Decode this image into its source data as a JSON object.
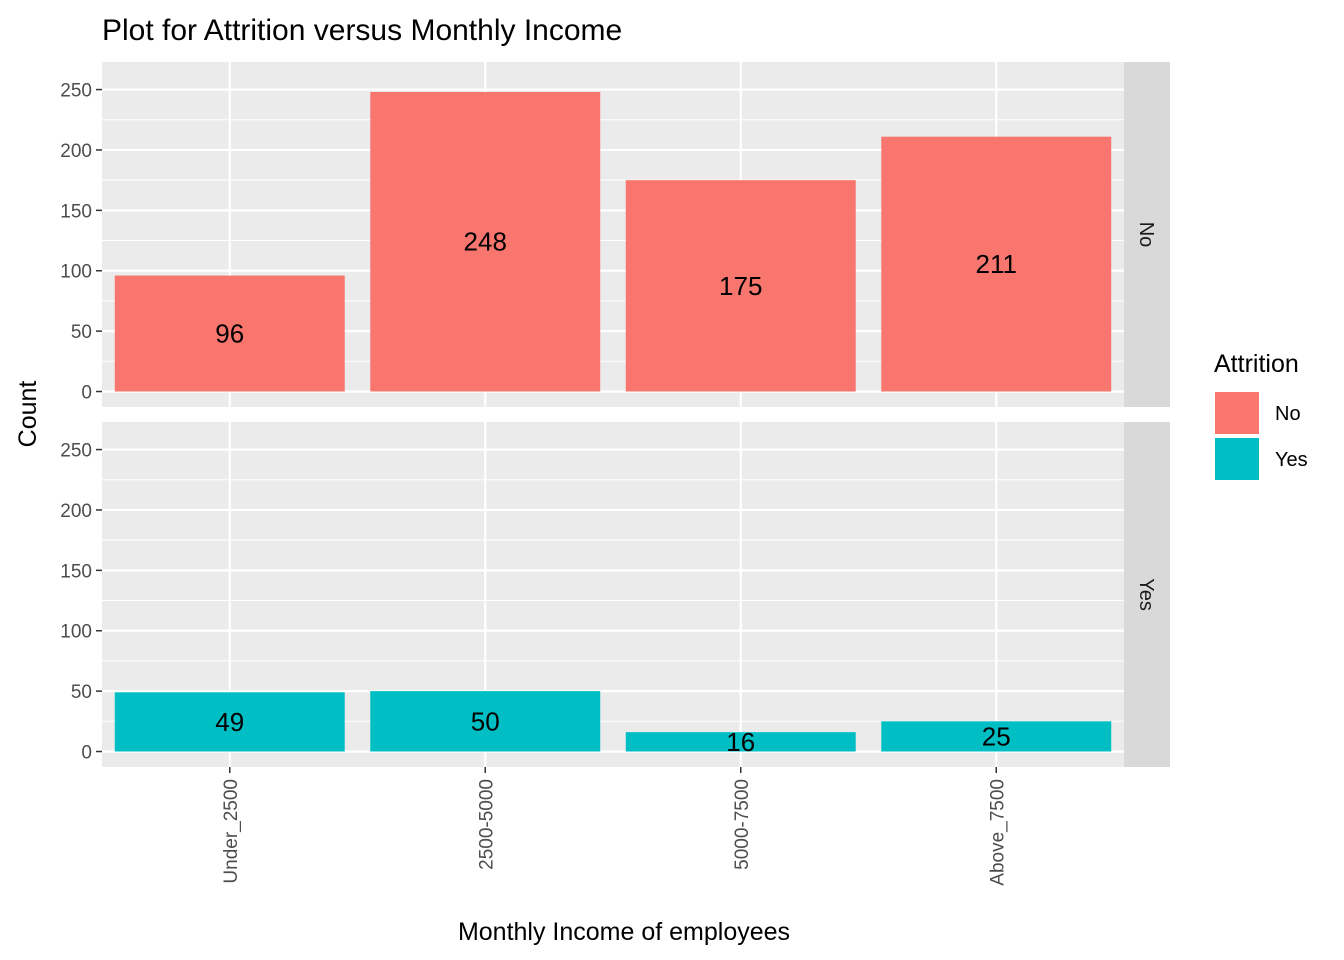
{
  "chart_data": {
    "type": "bar",
    "title": "Plot for Attrition versus Monthly Income",
    "xlabel": "Monthly Income of employees",
    "ylabel": "Count",
    "categories": [
      "Under_2500",
      "2500-5000",
      "5000-7500",
      "Above_7500"
    ],
    "ylim": [
      0,
      260
    ],
    "yticks": [
      0,
      50,
      100,
      150,
      200,
      250
    ],
    "grid": true,
    "facet_by": "Attrition",
    "panels": [
      {
        "strip_label": "No",
        "series": "No",
        "values": [
          96,
          248,
          175,
          211
        ]
      },
      {
        "strip_label": "Yes",
        "series": "Yes",
        "values": [
          49,
          50,
          16,
          25
        ]
      }
    ],
    "legend": {
      "title": "Attrition",
      "position": "right",
      "entries": [
        {
          "name": "No",
          "color": "#F8766D"
        },
        {
          "name": "Yes",
          "color": "#00BFC4"
        }
      ]
    }
  },
  "colors": {
    "panel_background": "#EBEBEB",
    "grid_major": "#FFFFFF",
    "strip_background": "#D9D9D9"
  }
}
